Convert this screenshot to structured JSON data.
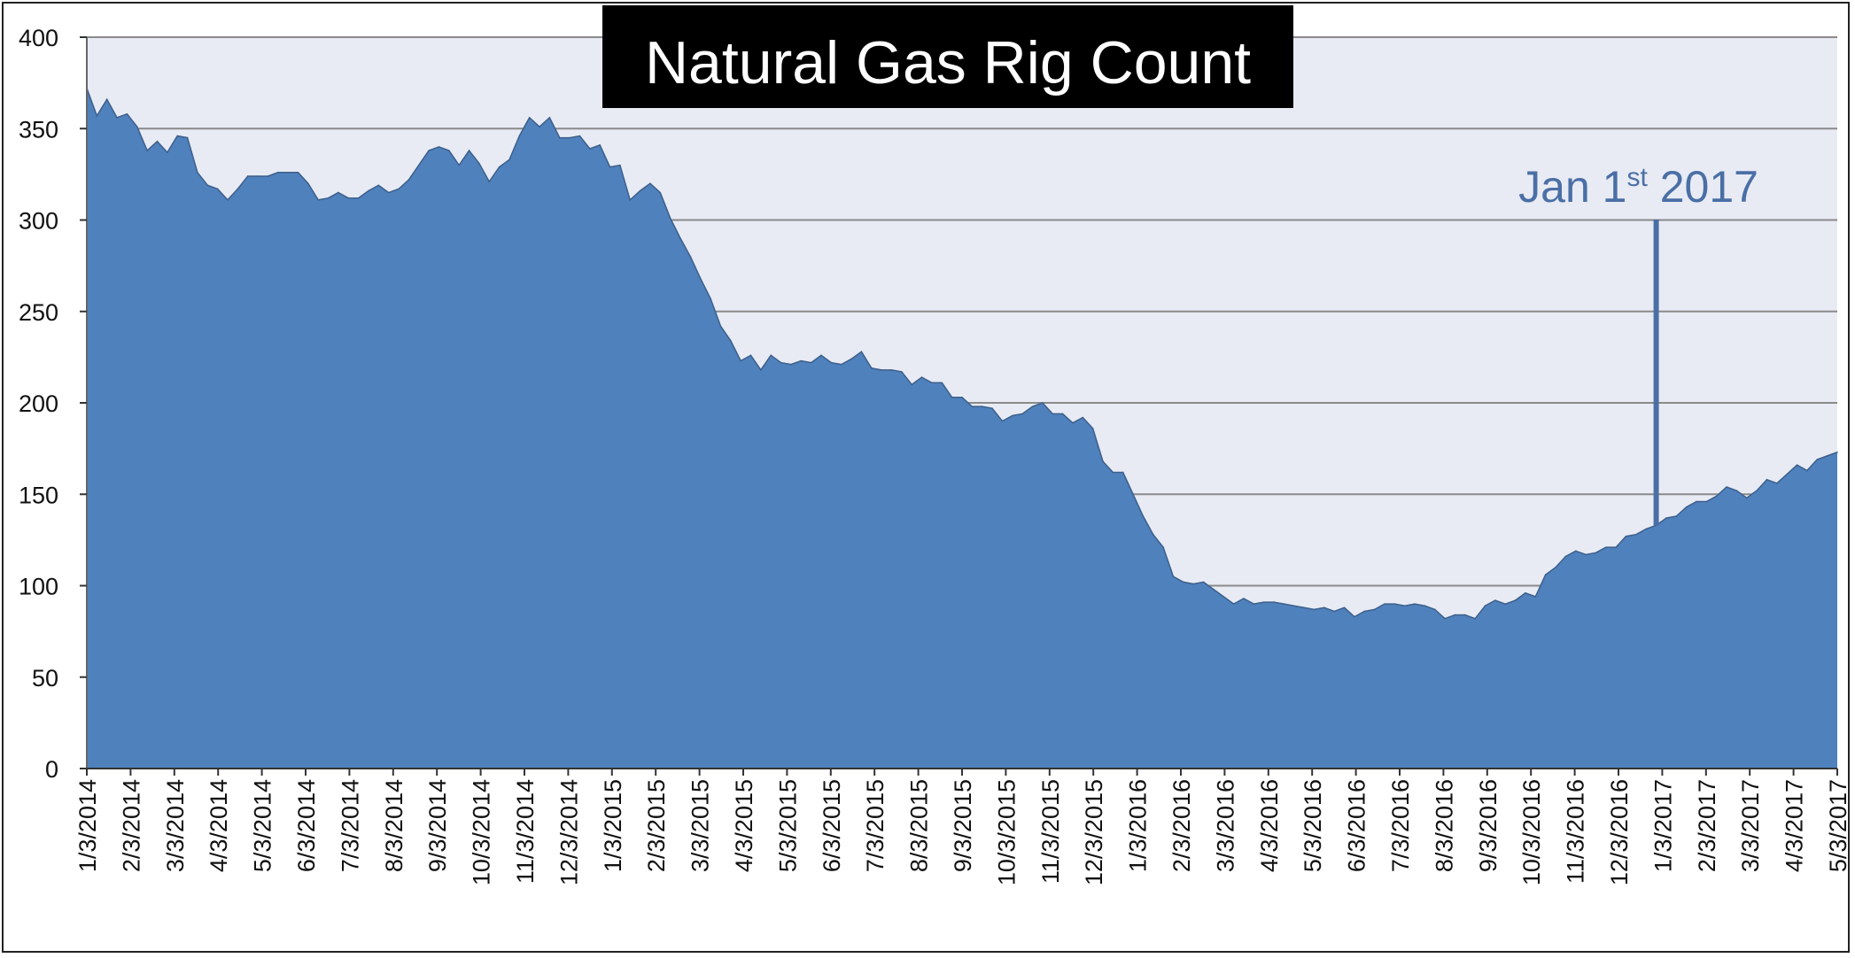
{
  "chart_data": {
    "type": "area",
    "title": "Natural Gas Rig Count",
    "ylim": [
      0,
      400
    ],
    "yticks": [
      0,
      50,
      100,
      150,
      200,
      250,
      300,
      350,
      400
    ],
    "ytick_labels": [
      "0",
      "50",
      "100",
      "150",
      "200",
      "250",
      "300",
      "350",
      "400"
    ],
    "xtick_labels": [
      "1/3/2014",
      "2/3/2014",
      "3/3/2014",
      "4/3/2014",
      "5/3/2014",
      "6/3/2014",
      "7/3/2014",
      "8/3/2014",
      "9/3/2014",
      "10/3/2014",
      "11/3/2014",
      "12/3/2014",
      "1/3/2015",
      "2/3/2015",
      "3/3/2015",
      "4/3/2015",
      "5/3/2015",
      "6/3/2015",
      "7/3/2015",
      "8/3/2015",
      "9/3/2015",
      "10/3/2015",
      "11/3/2015",
      "12/3/2015",
      "1/3/2016",
      "2/3/2016",
      "3/3/2016",
      "4/3/2016",
      "5/3/2016",
      "6/3/2016",
      "7/3/2016",
      "8/3/2016",
      "9/3/2016",
      "10/3/2016",
      "11/3/2016",
      "12/3/2016",
      "1/3/2017",
      "2/3/2017",
      "3/3/2017",
      "4/3/2017",
      "5/3/2017"
    ],
    "grid": true,
    "colors": {
      "area_fill": "#4f81bd",
      "area_line": "#3d5f8a",
      "plot_bg": "#e8ebf4",
      "grid": "#8a8a8a",
      "annotation": "#4a6fa5",
      "title_bg": "#000000",
      "title_fg": "#ffffff"
    },
    "annotation": {
      "text": "Jan 1",
      "sup": "st",
      "year": "2017",
      "x_week": 156
    },
    "series": [
      {
        "values": [
          372,
          357,
          366,
          356,
          358,
          351,
          338,
          343,
          337,
          346,
          345,
          326,
          319,
          317,
          311,
          317,
          324,
          324,
          324,
          326,
          326,
          326,
          320,
          311,
          312,
          315,
          312,
          312,
          316,
          319,
          315,
          317,
          322,
          330,
          338,
          340,
          338,
          330,
          338,
          331,
          321,
          329,
          333,
          346,
          356,
          351,
          356,
          345,
          345,
          346,
          339,
          341,
          329,
          330,
          311,
          316,
          320,
          315,
          301,
          290,
          280,
          268,
          257,
          242,
          234,
          223,
          226,
          218,
          226,
          222,
          221,
          223,
          222,
          226,
          222,
          221,
          224,
          228,
          219,
          218,
          218,
          217,
          210,
          214,
          211,
          211,
          203,
          203,
          198,
          198,
          197,
          190,
          193,
          194,
          198,
          200,
          194,
          194,
          189,
          192,
          186,
          168,
          162,
          162,
          150,
          138,
          128,
          121,
          105,
          102,
          101,
          102,
          98,
          94,
          90,
          93,
          90,
          91,
          91,
          90,
          89,
          88,
          87,
          88,
          86,
          88,
          83,
          86,
          87,
          90,
          90,
          89,
          90,
          89,
          87,
          82,
          84,
          84,
          82,
          89,
          92,
          90,
          92,
          96,
          94,
          106,
          110,
          116,
          119,
          117,
          118,
          121,
          121,
          127,
          128,
          131,
          133,
          137,
          138,
          143,
          146,
          146,
          149,
          154,
          152,
          148,
          152,
          158,
          156,
          161,
          166,
          163,
          169,
          171,
          173
        ]
      }
    ]
  }
}
